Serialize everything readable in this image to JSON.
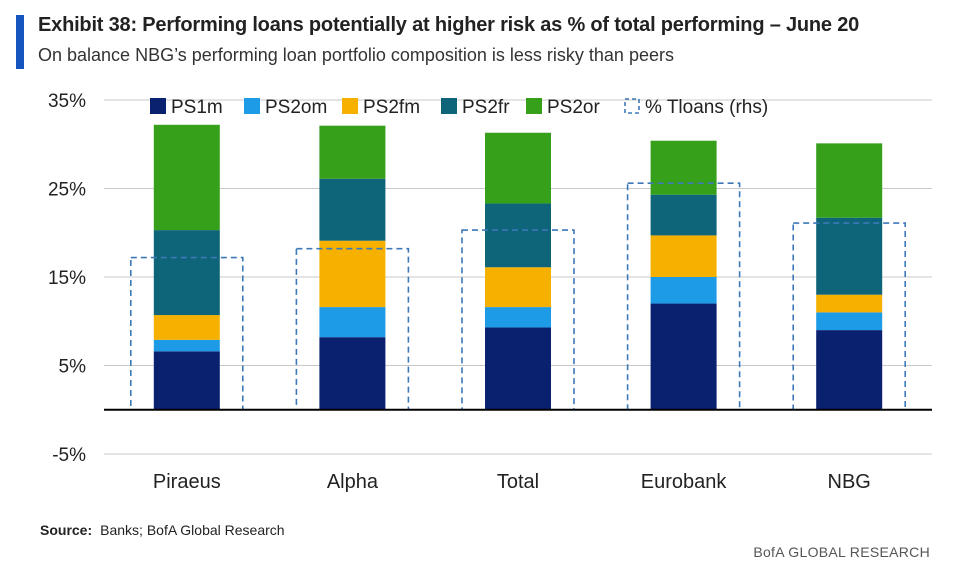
{
  "header": {
    "title": "Exhibit 38: Performing loans potentially at higher risk as % of total performing – June 20",
    "subtitle": "On balance NBG’s performing loan portfolio composition is less risky than peers"
  },
  "footer": {
    "source_label": "Source:",
    "source_text": "Banks; BofA Global Research",
    "brand": "BofA GLOBAL RESEARCH"
  },
  "chart_data": {
    "type": "bar",
    "stacked": true,
    "categories": [
      "Piraeus",
      "Alpha",
      "Total",
      "Eurobank",
      "NBG"
    ],
    "series": [
      {
        "name": "PS1m",
        "color": "#0a2170",
        "values": [
          6.6,
          8.2,
          9.3,
          12.0,
          9.0
        ]
      },
      {
        "name": "PS2om",
        "color": "#1e9be6",
        "values": [
          1.3,
          3.4,
          2.3,
          3.0,
          2.0
        ]
      },
      {
        "name": "PS2fm",
        "color": "#f5b000",
        "values": [
          2.8,
          7.5,
          4.5,
          4.7,
          2.0
        ]
      },
      {
        "name": "PS2fr",
        "color": "#0e6478",
        "values": [
          9.6,
          7.0,
          7.2,
          4.6,
          8.7
        ]
      },
      {
        "name": "PS2or",
        "color": "#36a01a",
        "values": [
          11.9,
          6.0,
          8.0,
          6.1,
          8.4
        ]
      }
    ],
    "rhs_series": {
      "name": "% Tloans (rhs)",
      "color": "#3d78b8",
      "style": "dashed-box",
      "values": [
        17.2,
        18.2,
        20.3,
        25.6,
        21.1
      ]
    },
    "yticks": [
      35,
      25,
      15,
      5,
      -5
    ],
    "ytick_labels": [
      "35%",
      "25%",
      "15%",
      "5%",
      "-5%"
    ],
    "ylim": [
      -5,
      35
    ],
    "grid": true,
    "legend_position": "top",
    "title": "",
    "xlabel": "",
    "ylabel": ""
  }
}
